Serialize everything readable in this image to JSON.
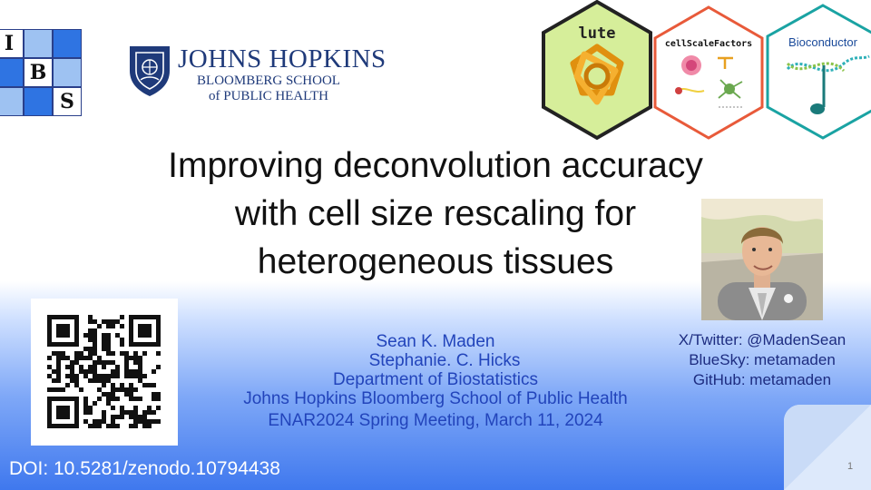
{
  "slide": {
    "title_lines": [
      "Improving deconvolution accuracy",
      "with cell size rescaling for",
      "heterogeneous tissues"
    ],
    "slide_number": "1"
  },
  "logos": {
    "ibs_letters": [
      "I",
      "B",
      "S"
    ],
    "jhu": {
      "name": "JOHNS HOPKINS",
      "line1": "BLOOMBERG SCHOOL",
      "line2": "of PUBLIC HEALTH"
    },
    "hex_stickers": [
      {
        "label": "lute",
        "icon": "knot-icon"
      },
      {
        "label": "cellScaleFactors",
        "icon": "neuron-icon"
      },
      {
        "label": "Bioconductor",
        "icon": "music-note-icon"
      }
    ]
  },
  "authors": {
    "lines": [
      "Sean K. Maden",
      "Stephanie. C. Hicks",
      "Department of Biostatistics",
      "Johns Hopkins Bloomberg School of Public Health",
      "ENAR2024 Spring Meeting, March 11, 2024"
    ]
  },
  "social": {
    "twitter": "X/Twitter: @MadenSean",
    "bluesky": "BlueSky: metamaden",
    "github": "GitHub: metamaden"
  },
  "doi": "DOI: 10.5281/zenodo.10794438",
  "colors": {
    "band_top": "#cfe0ff",
    "band_bottom": "#3f78ee",
    "author_text": "#2244bb",
    "social_text": "#1d2c80",
    "jhu_blue": "#1f3a7a",
    "lute_green": "#d6ee9a",
    "lute_orange": "#f0a020",
    "csf_border": "#e85a3a",
    "bioc_border": "#1aa3a3"
  }
}
